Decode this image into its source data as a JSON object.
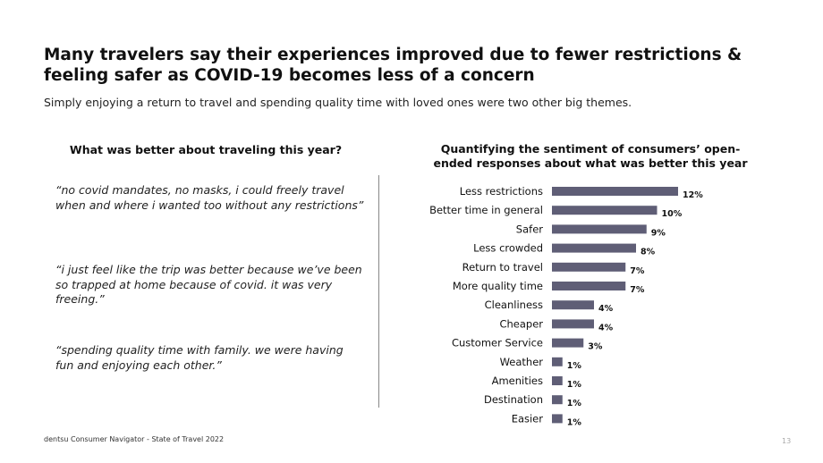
{
  "slide": {
    "title": "Many travelers say their experiences improved due to fewer restrictions & feeling safer as COVID-19 becomes less of a concern",
    "subtitle": "Simply enjoying a return to travel and spending quality time with loved ones were two other big themes.",
    "left_heading": "What was better about traveling this year?",
    "quotes": [
      "“no covid mandates, no masks, i could freely travel when and where i wanted too without any restrictions”",
      "“i just feel like the trip was better because we’ve been so trapped at home because of covid. it was very freeing.”",
      "“spending quality time with family.  we were having fun and enjoying each other.”"
    ],
    "right_heading_line1": "Quantifying the sentiment of consumers’ open-",
    "right_heading_line2": "ended responses about what was better this year",
    "footer": "dentsu Consumer Navigator - State of Travel 2022",
    "page_number": "13"
  },
  "chart_data": {
    "type": "bar",
    "orientation": "horizontal",
    "categories": [
      "Less restrictions",
      "Better time in general",
      "Safer",
      "Less crowded",
      "Return to travel",
      "More quality time",
      "Cleanliness",
      "Cheaper",
      "Customer Service",
      "Weather",
      "Amenities",
      "Destination",
      "Easier"
    ],
    "values": [
      12,
      10,
      9,
      8,
      7,
      7,
      4,
      4,
      3,
      1,
      1,
      1,
      1
    ],
    "value_labels": [
      "12%",
      "10%",
      "9%",
      "8%",
      "7%",
      "7%",
      "4%",
      "4%",
      "3%",
      "1%",
      "1%",
      "1%",
      "1%"
    ],
    "bar_color": "#5f5e76",
    "grid": false,
    "legend": "none"
  }
}
